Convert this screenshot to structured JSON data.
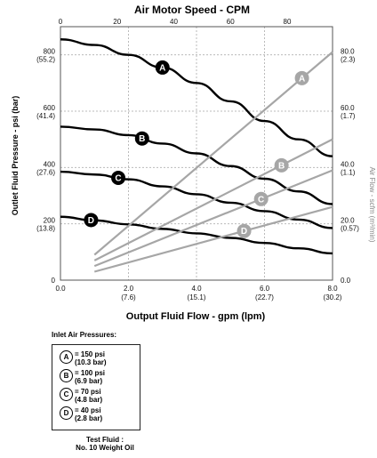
{
  "chart_data": {
    "type": "line",
    "title": "Air Motor Speed  - CPM",
    "xlabel": "Output Fluid Flow -  gpm  (lpm)",
    "ylabel_left": "Outlet Fluid Pressure - psi (bar)",
    "ylabel_right": "Air Flow - scfm (m³/min)",
    "xlim": [
      0,
      8
    ],
    "ylim_left": [
      0,
      900
    ],
    "ylim_right": [
      0,
      90
    ],
    "top_axis": {
      "range": [
        0,
        96
      ],
      "ticks": [
        "0",
        "20",
        "40",
        "60",
        "80"
      ]
    },
    "x_ticks": [
      {
        "value": 0,
        "label": "0.0",
        "sub": ""
      },
      {
        "value": 2,
        "label": "2.0",
        "sub": "(7.6)"
      },
      {
        "value": 4,
        "label": "4.0",
        "sub": "(15.1)"
      },
      {
        "value": 6,
        "label": "6.0",
        "sub": "(22.7)"
      },
      {
        "value": 8,
        "label": "8.0",
        "sub": "(30.2)"
      }
    ],
    "y_ticks_left": [
      {
        "value": 0,
        "label": "0",
        "sub": ""
      },
      {
        "value": 200,
        "label": "200",
        "sub": "(13.8)"
      },
      {
        "value": 400,
        "label": "400",
        "sub": "(27.6)"
      },
      {
        "value": 600,
        "label": "600",
        "sub": "(41.4)"
      },
      {
        "value": 800,
        "label": "800",
        "sub": "(55.2)"
      }
    ],
    "y_ticks_right": [
      {
        "value": 0,
        "label": "0.0",
        "sub": ""
      },
      {
        "value": 20,
        "label": "20.0",
        "sub": "(0.57)"
      },
      {
        "value": 40,
        "label": "40.0",
        "sub": "(1.1)"
      },
      {
        "value": 60,
        "label": "60.0",
        "sub": "(1.7)"
      },
      {
        "value": 80,
        "label": "80.0",
        "sub": "(2.3)"
      }
    ],
    "grid": true,
    "series": [
      {
        "name": "A",
        "axis": "left",
        "color": "#000000",
        "marker_x": 3.0,
        "x": [
          0,
          1,
          2,
          3,
          4,
          5,
          6,
          7,
          8
        ],
        "y": [
          855,
          835,
          800,
          755,
          700,
          635,
          565,
          500,
          440
        ]
      },
      {
        "name": "B",
        "axis": "left",
        "color": "#000000",
        "marker_x": 2.4,
        "x": [
          0,
          1,
          2,
          3,
          4,
          5,
          6,
          7,
          8
        ],
        "y": [
          545,
          535,
          515,
          485,
          450,
          405,
          360,
          315,
          270
        ]
      },
      {
        "name": "C",
        "axis": "left",
        "color": "#000000",
        "marker_x": 1.7,
        "x": [
          0,
          1,
          2,
          3,
          4,
          5,
          6,
          7,
          8
        ],
        "y": [
          385,
          375,
          358,
          333,
          305,
          275,
          245,
          215,
          185
        ]
      },
      {
        "name": "D",
        "axis": "left",
        "color": "#000000",
        "marker_x": 0.9,
        "x": [
          0,
          1,
          2,
          3,
          4,
          5,
          6,
          7,
          8
        ],
        "y": [
          225,
          212,
          198,
          182,
          166,
          150,
          132,
          113,
          95
        ]
      },
      {
        "name": "A",
        "axis": "right",
        "color": "#a6a6a6",
        "marker_x": 7.1,
        "x": [
          1,
          8
        ],
        "y": [
          9,
          81
        ]
      },
      {
        "name": "B",
        "axis": "right",
        "color": "#a6a6a6",
        "marker_x": 6.5,
        "x": [
          1,
          8
        ],
        "y": [
          7,
          50
        ]
      },
      {
        "name": "C",
        "axis": "right",
        "color": "#a6a6a6",
        "marker_x": 5.9,
        "x": [
          1,
          8
        ],
        "y": [
          5,
          39
        ]
      },
      {
        "name": "D",
        "axis": "right",
        "color": "#a6a6a6",
        "marker_x": 5.4,
        "x": [
          1,
          8
        ],
        "y": [
          3,
          26
        ]
      }
    ]
  },
  "legend": {
    "title": "Inlet Air Pressures:",
    "items": [
      {
        "badge": "A",
        "line1": "= 150 psi",
        "line2": "(10.3 bar)"
      },
      {
        "badge": "B",
        "line1": "= 100 psi",
        "line2": "(6.9 bar)"
      },
      {
        "badge": "C",
        "line1": "= 70 psi",
        "line2": "(4.8 bar)"
      },
      {
        "badge": "D",
        "line1": "= 40 psi",
        "line2": "(2.8 bar)"
      }
    ],
    "test_fluid_label": "Test Fluid :",
    "test_fluid_value": "No. 10 Weight Oil"
  }
}
